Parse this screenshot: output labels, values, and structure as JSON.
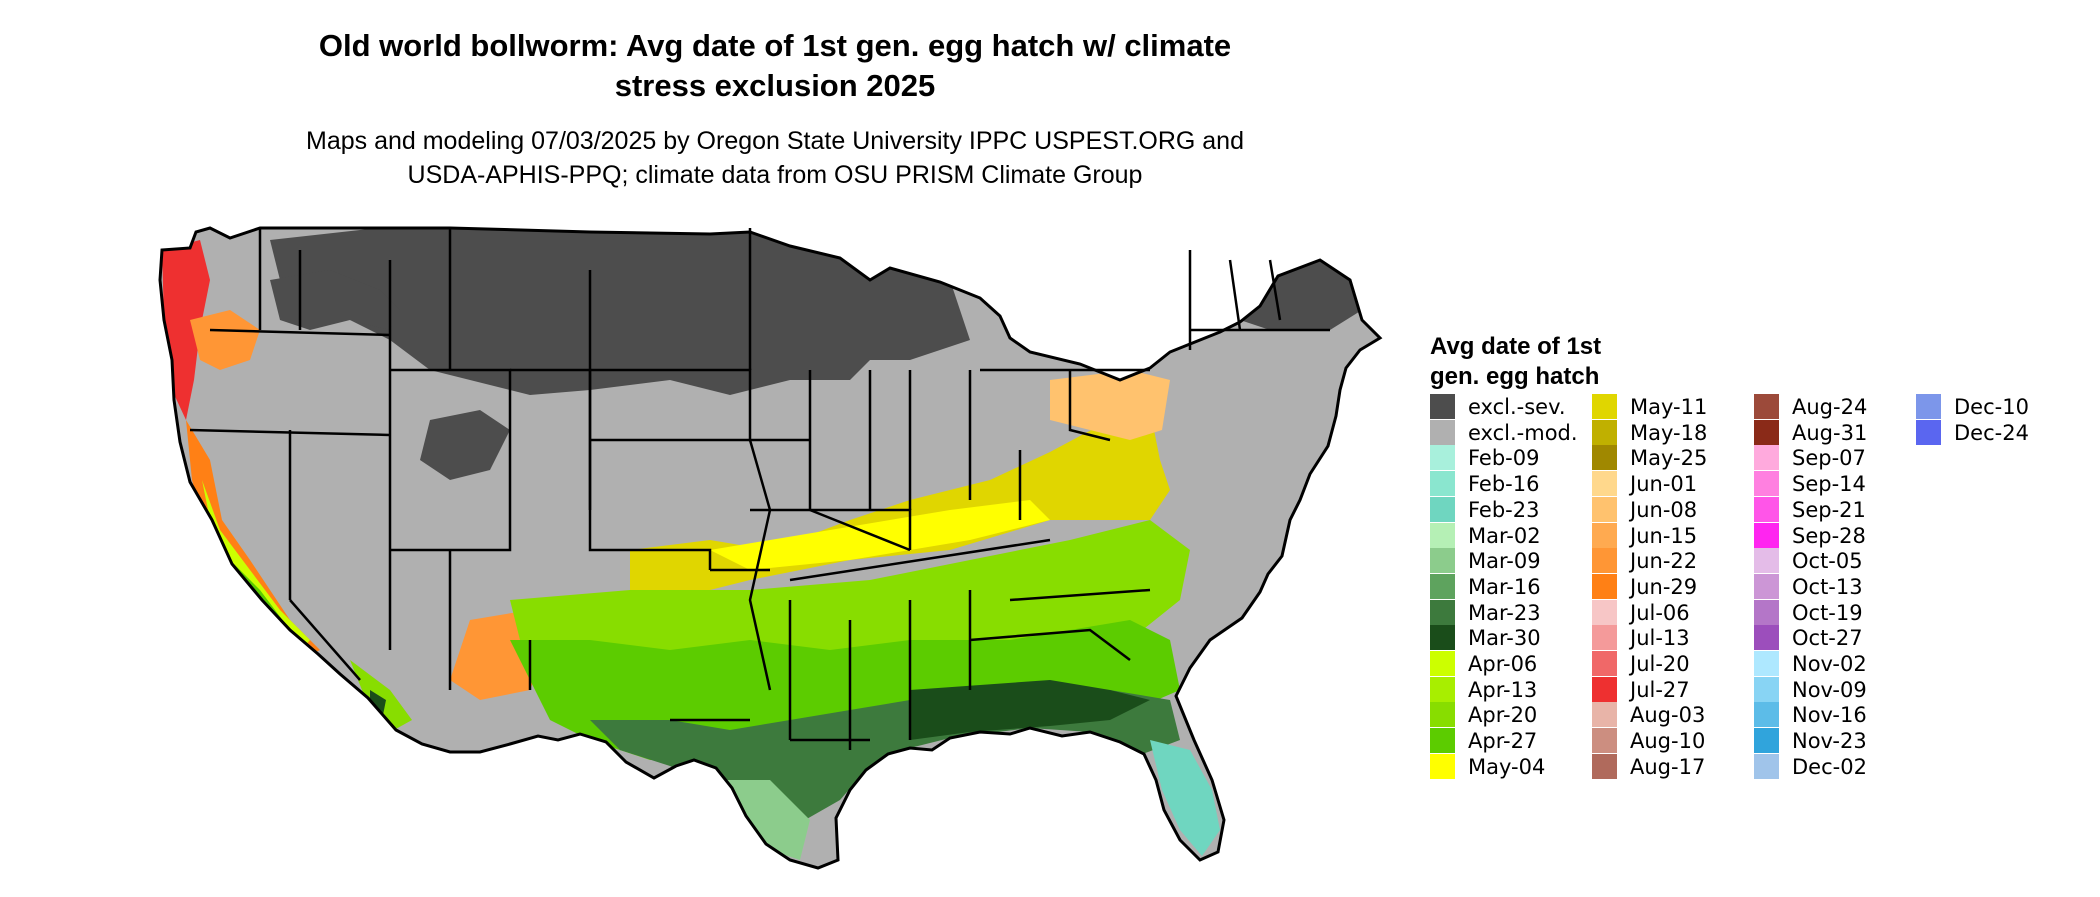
{
  "title_line1": "Old world bollworm: Avg date of 1st gen. egg hatch w/ climate",
  "title_line2": "stress exclusion 2025",
  "subtitle_line1": "Maps and modeling 07/03/2025 by Oregon State University IPPC USPEST.ORG and",
  "subtitle_line2": "USDA-APHIS-PPQ; climate data from OSU PRISM Climate Group",
  "legend": {
    "title_line1": "Avg date of 1st",
    "title_line2": "gen. egg hatch",
    "items": [
      {
        "label": "excl.-sev.",
        "color": "#4d4d4d"
      },
      {
        "label": "excl.-mod.",
        "color": "#b0b0b0"
      },
      {
        "label": "Feb-09",
        "color": "#a8f0dc"
      },
      {
        "label": "Feb-16",
        "color": "#8ae6cf"
      },
      {
        "label": "Feb-23",
        "color": "#6fd6c0"
      },
      {
        "label": "Mar-02",
        "color": "#b5f0b5"
      },
      {
        "label": "Mar-09",
        "color": "#8ccc8c"
      },
      {
        "label": "Mar-16",
        "color": "#5ea35e"
      },
      {
        "label": "Mar-23",
        "color": "#3d7a3d"
      },
      {
        "label": "Mar-30",
        "color": "#1a4d1a"
      },
      {
        "label": "Apr-06",
        "color": "#ccff00"
      },
      {
        "label": "Apr-13",
        "color": "#a8ee00"
      },
      {
        "label": "Apr-20",
        "color": "#88dd00"
      },
      {
        "label": "Apr-27",
        "color": "#5ccc00"
      },
      {
        "label": "May-04",
        "color": "#ffff00"
      },
      {
        "label": "May-11",
        "color": "#e0d600"
      },
      {
        "label": "May-18",
        "color": "#c0b000"
      },
      {
        "label": "May-25",
        "color": "#a08800"
      },
      {
        "label": "Jun-01",
        "color": "#ffd88c"
      },
      {
        "label": "Jun-08",
        "color": "#ffc26e"
      },
      {
        "label": "Jun-15",
        "color": "#ffaa50"
      },
      {
        "label": "Jun-22",
        "color": "#ff9635"
      },
      {
        "label": "Jun-29",
        "color": "#ff8015"
      },
      {
        "label": "Jul-06",
        "color": "#f7c6c6"
      },
      {
        "label": "Jul-13",
        "color": "#f49a9a"
      },
      {
        "label": "Jul-20",
        "color": "#f06868"
      },
      {
        "label": "Jul-27",
        "color": "#ee3030"
      },
      {
        "label": "Aug-03",
        "color": "#e8b4a8"
      },
      {
        "label": "Aug-10",
        "color": "#cc8e80"
      },
      {
        "label": "Aug-17",
        "color": "#b06a5c"
      },
      {
        "label": "Aug-24",
        "color": "#9c4a3a"
      },
      {
        "label": "Aug-31",
        "color": "#8a2a18"
      },
      {
        "label": "Sep-07",
        "color": "#ffaadd"
      },
      {
        "label": "Sep-14",
        "color": "#ff80e0"
      },
      {
        "label": "Sep-21",
        "color": "#ff55e8"
      },
      {
        "label": "Sep-28",
        "color": "#ff25f0"
      },
      {
        "label": "Oct-05",
        "color": "#e4bce8"
      },
      {
        "label": "Oct-13",
        "color": "#cc96d6"
      },
      {
        "label": "Oct-19",
        "color": "#b476c8"
      },
      {
        "label": "Oct-27",
        "color": "#9c4ebc"
      },
      {
        "label": "Nov-02",
        "color": "#aee8ff"
      },
      {
        "label": "Nov-09",
        "color": "#88d4f4"
      },
      {
        "label": "Nov-16",
        "color": "#5cbce8"
      },
      {
        "label": "Nov-23",
        "color": "#30a4dc"
      },
      {
        "label": "Dec-02",
        "color": "#a0c4ea"
      },
      {
        "label": "Dec-10",
        "color": "#7c96ea"
      },
      {
        "label": "Dec-24",
        "color": "#5a66f0"
      }
    ]
  }
}
